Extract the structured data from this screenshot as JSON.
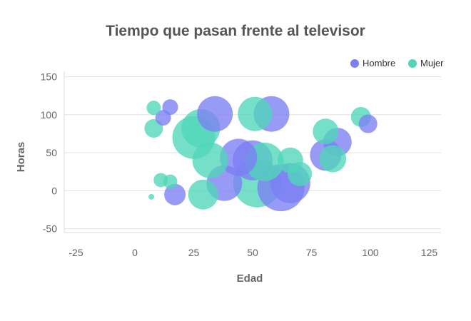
{
  "chart_data": {
    "type": "scatter",
    "subtype": "bubble",
    "title": "Tiempo que pasan frente al televisor",
    "xlabel": "Edad",
    "ylabel": "Horas",
    "xlim": [
      -30,
      130
    ],
    "ylim": [
      -55,
      157
    ],
    "x_ticks": [
      "-25",
      "0",
      "25",
      "50",
      "75",
      "100",
      "125"
    ],
    "x_tick_values": [
      -25,
      0,
      25,
      50,
      75,
      100,
      125
    ],
    "y_ticks": [
      "150",
      "100",
      "50",
      "0",
      "-50"
    ],
    "y_tick_values": [
      150,
      100,
      50,
      0,
      -50
    ],
    "grid": true,
    "legend_position": "top-right",
    "series": [
      {
        "name": "Hombre",
        "color": "#7b7ff3",
        "points": [
          {
            "x": 34,
            "y": 101,
            "size": 25
          },
          {
            "x": 58,
            "y": 101,
            "size": 25
          },
          {
            "x": 15,
            "y": 110,
            "size": 11
          },
          {
            "x": 12,
            "y": 96,
            "size": 11
          },
          {
            "x": 44,
            "y": 44,
            "size": 26
          },
          {
            "x": 50,
            "y": 40,
            "size": 28
          },
          {
            "x": 38,
            "y": 10,
            "size": 25
          },
          {
            "x": 62,
            "y": 4,
            "size": 33
          },
          {
            "x": 66,
            "y": 10,
            "size": 28
          },
          {
            "x": 17,
            "y": -5,
            "size": 15
          },
          {
            "x": 81,
            "y": 47,
            "size": 22
          },
          {
            "x": 86,
            "y": 64,
            "size": 20
          },
          {
            "x": 99,
            "y": 88,
            "size": 13
          }
        ]
      },
      {
        "name": "Mujer",
        "color": "#4fd6b8",
        "points": [
          {
            "x": 28,
            "y": 82,
            "size": 27
          },
          {
            "x": 25,
            "y": 70,
            "size": 30
          },
          {
            "x": 51,
            "y": 101,
            "size": 24
          },
          {
            "x": 8,
            "y": 109,
            "size": 10
          },
          {
            "x": 8,
            "y": 82,
            "size": 13
          },
          {
            "x": 32,
            "y": 40,
            "size": 25
          },
          {
            "x": 55,
            "y": 38,
            "size": 27
          },
          {
            "x": 52,
            "y": 10,
            "size": 34
          },
          {
            "x": 66,
            "y": 40,
            "size": 18
          },
          {
            "x": 70,
            "y": 22,
            "size": 17
          },
          {
            "x": 11,
            "y": 14,
            "size": 10
          },
          {
            "x": 15,
            "y": 12,
            "size": 10
          },
          {
            "x": 7,
            "y": -8,
            "size": 4
          },
          {
            "x": 29,
            "y": -5,
            "size": 21
          },
          {
            "x": 81,
            "y": 78,
            "size": 18
          },
          {
            "x": 84,
            "y": 42,
            "size": 19
          },
          {
            "x": 96,
            "y": 97,
            "size": 14
          }
        ]
      }
    ]
  }
}
